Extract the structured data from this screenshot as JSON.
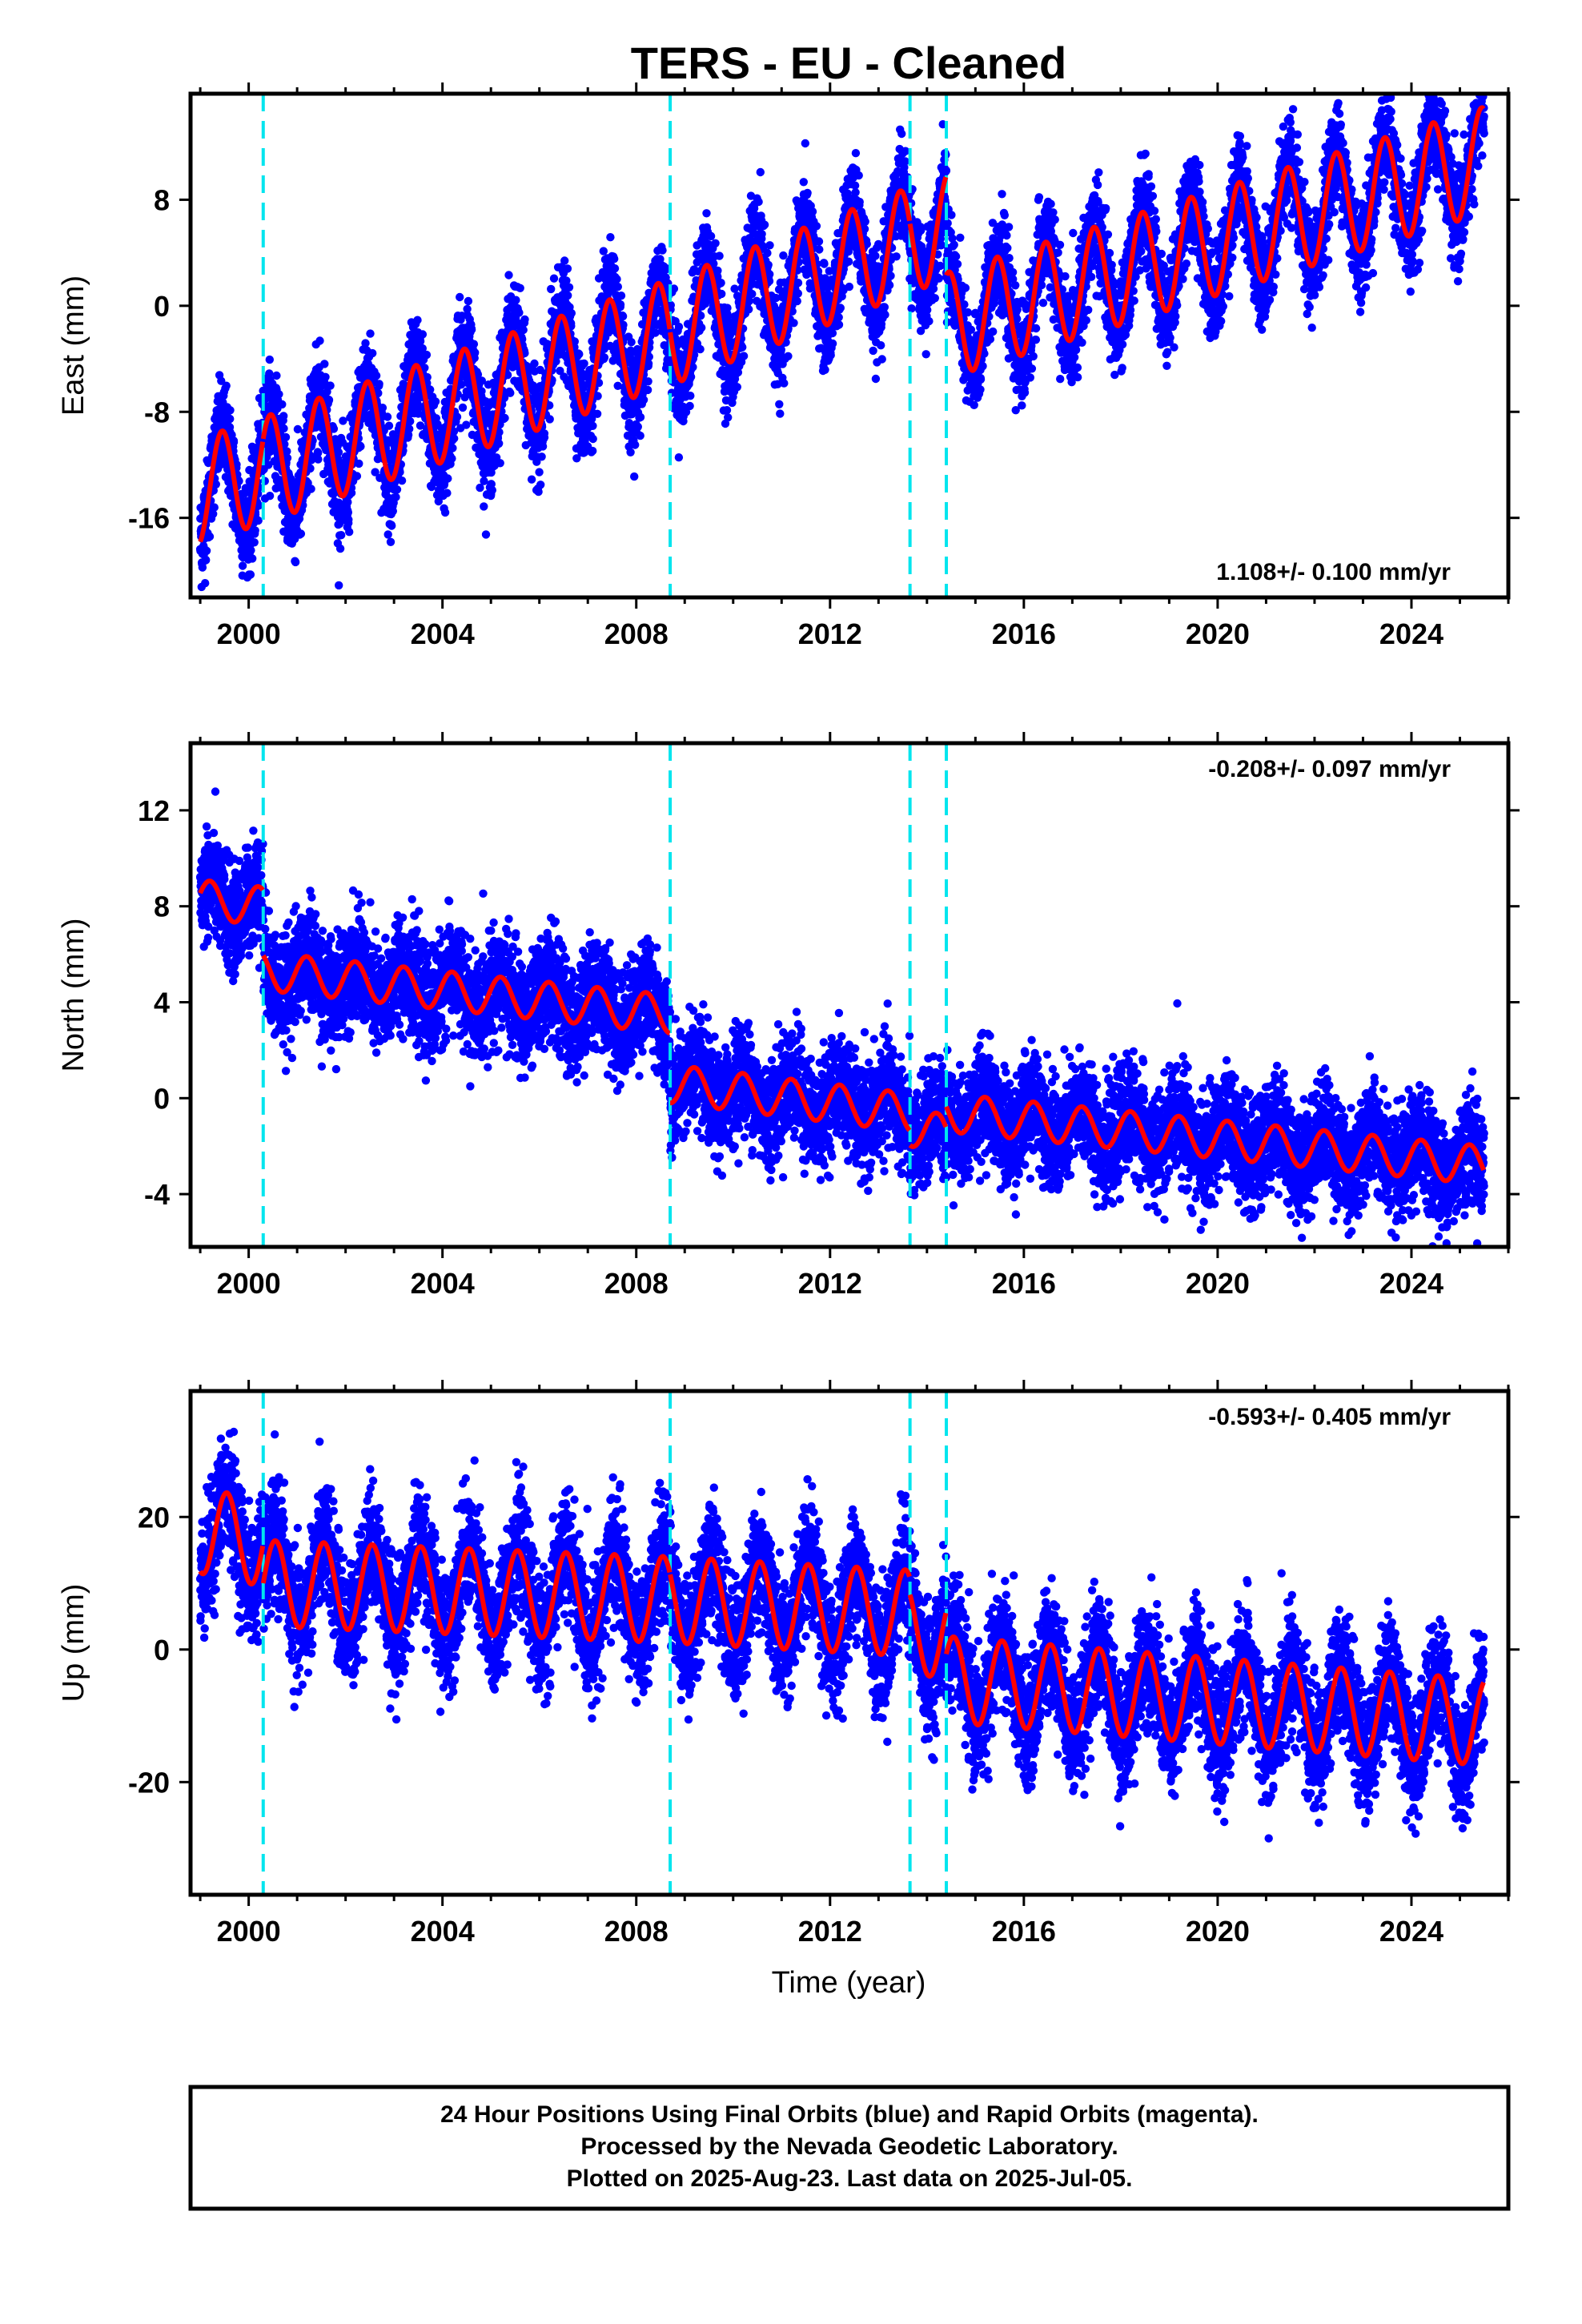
{
  "title": "TERS  - EU - Cleaned",
  "x_axis_label": "Time (year)",
  "footer": [
    "24 Hour Positions Using Final Orbits (blue) and Rapid Orbits (magenta).",
    "Processed by the Nevada Geodetic Laboratory.",
    "Plotted on 2025-Aug-23. Last data on 2025-Jul-05."
  ],
  "colors": {
    "data_points": "#0000ff",
    "model_fit": "#ff0000",
    "offset_lines": "#00e5ee",
    "frame": "#000000"
  },
  "chart_data": [
    {
      "type": "scatter",
      "ylabel": "East (mm)",
      "xlim": [
        1998.8,
        2026.0
      ],
      "ylim": [
        -22,
        16
      ],
      "x_ticks": [
        "2000",
        "2004",
        "2008",
        "2012",
        "2016",
        "2020",
        "2024"
      ],
      "y_ticks": [
        "8",
        "0",
        "-8",
        "-16"
      ],
      "y_tick_values": [
        8,
        0,
        -8,
        -16
      ],
      "rate_text": "1.108+/- 0.100 mm/yr",
      "rate_position": "bottom-right",
      "offset_lines": [
        2000.3,
        2008.7,
        2013.65,
        2014.4
      ],
      "series_start": 1999.0,
      "series_end": 2025.5,
      "model": {
        "trend_breakpoints": [
          [
            1999.0,
            -14.0
          ],
          [
            2008.7,
            -2.0
          ],
          [
            2014.4,
            6.0
          ]
        ],
        "trend_after": [
          [
            2014.4,
            -1.5
          ],
          [
            2025.5,
            11.0
          ]
        ],
        "annual_amplitude": 4.0,
        "annual_peak_phase": 0.45
      },
      "scatter_sigma": 1.8
    },
    {
      "type": "scatter",
      "ylabel": "North (mm)",
      "xlim": [
        1998.8,
        2026.0
      ],
      "ylim": [
        -6.2,
        14.8
      ],
      "x_ticks": [
        "2000",
        "2004",
        "2008",
        "2012",
        "2016",
        "2020",
        "2024"
      ],
      "y_ticks": [
        "12",
        "8",
        "4",
        "0",
        "-4"
      ],
      "y_tick_values": [
        12,
        8,
        4,
        0,
        -4
      ],
      "rate_text": "-0.208+/- 0.097 mm/yr",
      "rate_position": "top-right",
      "offset_lines": [
        2000.3,
        2008.7,
        2013.65,
        2014.4
      ],
      "series_start": 1999.0,
      "series_end": 2025.5,
      "model": {
        "segments": [
          {
            "start": 1999.0,
            "end": 2000.3,
            "from": 8.3,
            "to": 8.0
          },
          {
            "start": 2000.3,
            "end": 2008.7,
            "from": 5.3,
            "to": 3.5
          },
          {
            "start": 2008.7,
            "end": 2013.65,
            "from": 0.6,
            "to": -0.6
          },
          {
            "start": 2013.65,
            "end": 2014.4,
            "from": -1.2,
            "to": -1.5
          },
          {
            "start": 2014.4,
            "end": 2025.5,
            "from": -0.6,
            "to": -2.8
          }
        ],
        "annual_amplitude": 0.8,
        "annual_peak_phase": 0.2
      },
      "scatter_sigma": 1.1
    },
    {
      "type": "scatter",
      "ylabel": "Up (mm)",
      "xlim": [
        1998.8,
        2026.0
      ],
      "ylim": [
        -37,
        39
      ],
      "x_ticks": [
        "2000",
        "2004",
        "2008",
        "2012",
        "2016",
        "2020",
        "2024"
      ],
      "y_ticks": [
        "20",
        "0",
        "-20"
      ],
      "y_tick_values": [
        20,
        0,
        -20
      ],
      "rate_text": "-0.593+/- 0.405 mm/yr",
      "rate_position": "top-right",
      "offset_lines": [
        2000.3,
        2008.7,
        2013.65,
        2014.4
      ],
      "series_start": 1999.0,
      "series_end": 2025.5,
      "model": {
        "segments": [
          {
            "start": 1999.0,
            "end": 2000.3,
            "from": 18.0,
            "to": 16.0
          },
          {
            "start": 2000.3,
            "end": 2008.7,
            "from": 10.0,
            "to": 7.5
          },
          {
            "start": 2008.7,
            "end": 2013.65,
            "from": 7.5,
            "to": 5.5
          },
          {
            "start": 2013.65,
            "end": 2014.4,
            "from": 3.0,
            "to": 2.0
          },
          {
            "start": 2014.4,
            "end": 2025.5,
            "from": -4.5,
            "to": -11.0
          }
        ],
        "annual_amplitude": 6.5,
        "annual_peak_phase": 0.55
      },
      "scatter_sigma": 4.5
    }
  ]
}
